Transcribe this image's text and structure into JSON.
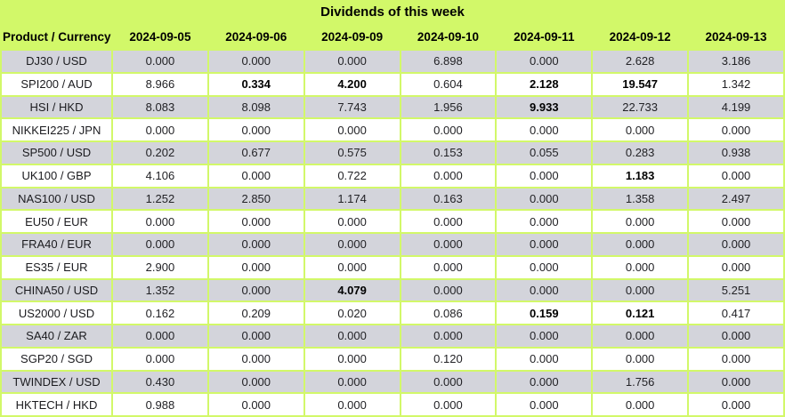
{
  "title": "Dividends of this week",
  "colors": {
    "accent_green": "#d2f869",
    "row_gray": "#d3d4db",
    "row_white": "#ffffff",
    "text": "#222226"
  },
  "table": {
    "header_label": "Product / Currency",
    "dates": [
      "2024-09-05",
      "2024-09-06",
      "2024-09-09",
      "2024-09-10",
      "2024-09-11",
      "2024-09-12",
      "2024-09-13"
    ],
    "rows": [
      {
        "product": "DJ30 / USD",
        "values": [
          "0.000",
          "0.000",
          "0.000",
          "6.898",
          "0.000",
          "2.628",
          "3.186"
        ],
        "bold": []
      },
      {
        "product": "SPI200 / AUD",
        "values": [
          "8.966",
          "0.334",
          "4.200",
          "0.604",
          "2.128",
          "19.547",
          "1.342"
        ],
        "bold": [
          1,
          2,
          4,
          5
        ]
      },
      {
        "product": "HSI / HKD",
        "values": [
          "8.083",
          "8.098",
          "7.743",
          "1.956",
          "9.933",
          "22.733",
          "4.199"
        ],
        "bold": [
          4
        ]
      },
      {
        "product": "NIKKEI225 / JPN",
        "values": [
          "0.000",
          "0.000",
          "0.000",
          "0.000",
          "0.000",
          "0.000",
          "0.000"
        ],
        "bold": []
      },
      {
        "product": "SP500 / USD",
        "values": [
          "0.202",
          "0.677",
          "0.575",
          "0.153",
          "0.055",
          "0.283",
          "0.938"
        ],
        "bold": []
      },
      {
        "product": "UK100 / GBP",
        "values": [
          "4.106",
          "0.000",
          "0.722",
          "0.000",
          "0.000",
          "1.183",
          "0.000"
        ],
        "bold": [
          5
        ]
      },
      {
        "product": "NAS100 / USD",
        "values": [
          "1.252",
          "2.850",
          "1.174",
          "0.163",
          "0.000",
          "1.358",
          "2.497"
        ],
        "bold": []
      },
      {
        "product": "EU50 / EUR",
        "values": [
          "0.000",
          "0.000",
          "0.000",
          "0.000",
          "0.000",
          "0.000",
          "0.000"
        ],
        "bold": []
      },
      {
        "product": "FRA40 / EUR",
        "values": [
          "0.000",
          "0.000",
          "0.000",
          "0.000",
          "0.000",
          "0.000",
          "0.000"
        ],
        "bold": []
      },
      {
        "product": "ES35 / EUR",
        "values": [
          "2.900",
          "0.000",
          "0.000",
          "0.000",
          "0.000",
          "0.000",
          "0.000"
        ],
        "bold": []
      },
      {
        "product": "CHINA50 / USD",
        "values": [
          "1.352",
          "0.000",
          "4.079",
          "0.000",
          "0.000",
          "0.000",
          "5.251"
        ],
        "bold": [
          2
        ]
      },
      {
        "product": "US2000 / USD",
        "values": [
          "0.162",
          "0.209",
          "0.020",
          "0.086",
          "0.159",
          "0.121",
          "0.417"
        ],
        "bold": [
          4,
          5
        ]
      },
      {
        "product": "SA40 / ZAR",
        "values": [
          "0.000",
          "0.000",
          "0.000",
          "0.000",
          "0.000",
          "0.000",
          "0.000"
        ],
        "bold": []
      },
      {
        "product": "SGP20 / SGD",
        "values": [
          "0.000",
          "0.000",
          "0.000",
          "0.120",
          "0.000",
          "0.000",
          "0.000"
        ],
        "bold": []
      },
      {
        "product": "TWINDEX / USD",
        "values": [
          "0.430",
          "0.000",
          "0.000",
          "0.000",
          "0.000",
          "1.756",
          "0.000"
        ],
        "bold": []
      },
      {
        "product": "HKTECH / HKD",
        "values": [
          "0.988",
          "0.000",
          "0.000",
          "0.000",
          "0.000",
          "0.000",
          "0.000"
        ],
        "bold": []
      }
    ]
  }
}
